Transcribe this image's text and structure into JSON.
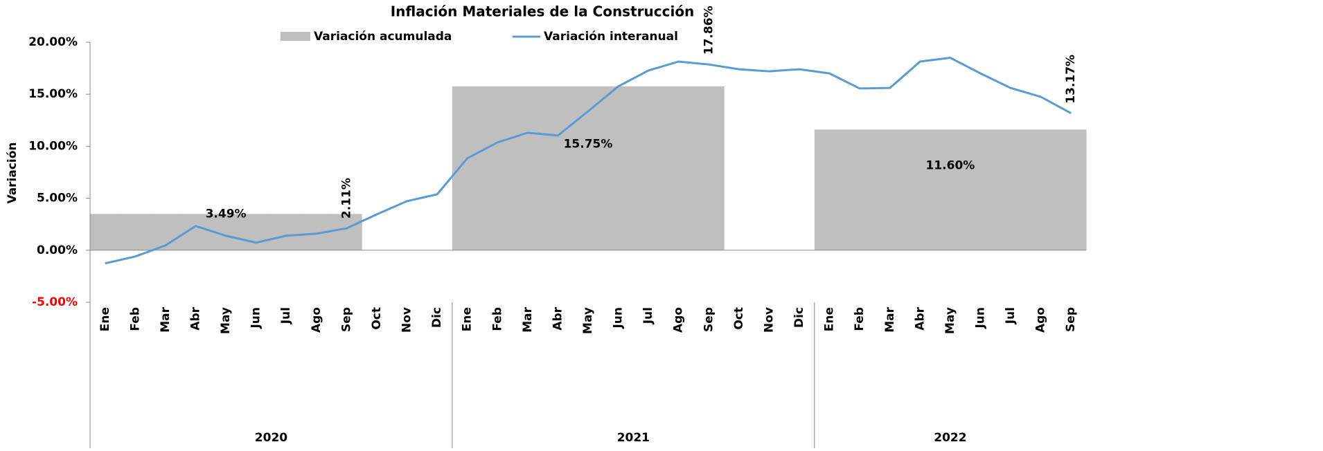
{
  "chart_data": {
    "type": "bar-line",
    "title": "Inflación Materiales de la Construcción",
    "y_label": "Variación",
    "categories": [
      "Ene",
      "Feb",
      "Mar",
      "Abr",
      "May",
      "Jun",
      "Jul",
      "Ago",
      "Sep",
      "Oct",
      "Nov",
      "Dic",
      "Ene",
      "Feb",
      "Mar",
      "Abr",
      "May",
      "Jun",
      "Jul",
      "Ago",
      "Sep",
      "Oct",
      "Nov",
      "Dic",
      "Ene",
      "Feb",
      "Mar",
      "Abr",
      "May",
      "Jun",
      "Jul",
      "Ago",
      "Sep"
    ],
    "years": [
      "2020",
      "2021",
      "2022"
    ],
    "ylim": [
      -5,
      20
    ],
    "yticks": [
      {
        "value": -5,
        "label": "-5.00%"
      },
      {
        "value": 0,
        "label": "0.00%"
      },
      {
        "value": 5,
        "label": "5.00%"
      },
      {
        "value": 10,
        "label": "10.00%"
      },
      {
        "value": 15,
        "label": "15.00%"
      },
      {
        "value": 20,
        "label": "20.00%"
      }
    ],
    "negative_label_color": "#ff0000",
    "series": [
      {
        "name": "Variación acumulada",
        "kind": "bar",
        "color": "#bfbfbf",
        "values": [
          3.49,
          3.49,
          3.49,
          3.49,
          3.49,
          3.49,
          3.49,
          3.49,
          3.49,
          null,
          null,
          null,
          15.75,
          15.75,
          15.75,
          15.75,
          15.75,
          15.75,
          15.75,
          15.75,
          15.75,
          null,
          null,
          null,
          11.6,
          11.6,
          11.6,
          11.6,
          11.6,
          11.6,
          11.6,
          11.6,
          11.6
        ],
        "value_labels": [
          null,
          null,
          null,
          null,
          "3.49%",
          null,
          null,
          null,
          null,
          null,
          null,
          null,
          null,
          null,
          null,
          null,
          "15.75%",
          null,
          null,
          null,
          null,
          null,
          null,
          null,
          null,
          null,
          null,
          null,
          "11.60%",
          null,
          null,
          null,
          null
        ]
      },
      {
        "name": "Variación interanual",
        "kind": "line",
        "color": "#5b9bd5",
        "values": [
          -1.26,
          -0.6,
          0.47,
          2.33,
          1.4,
          0.73,
          1.4,
          1.6,
          2.11,
          3.45,
          4.72,
          5.38,
          8.84,
          10.37,
          11.3,
          11.03,
          13.36,
          15.75,
          17.28,
          18.14,
          17.86,
          17.4,
          17.2,
          17.4,
          17.0,
          15.55,
          15.6,
          18.14,
          18.5,
          17.0,
          15.6,
          14.75,
          13.17
        ],
        "value_labels": [
          null,
          null,
          null,
          null,
          null,
          null,
          null,
          null,
          "2.11%",
          null,
          null,
          null,
          null,
          null,
          null,
          null,
          null,
          null,
          null,
          null,
          "17.86%",
          null,
          null,
          null,
          null,
          null,
          null,
          null,
          null,
          null,
          null,
          null,
          "13.17%"
        ]
      }
    ]
  }
}
